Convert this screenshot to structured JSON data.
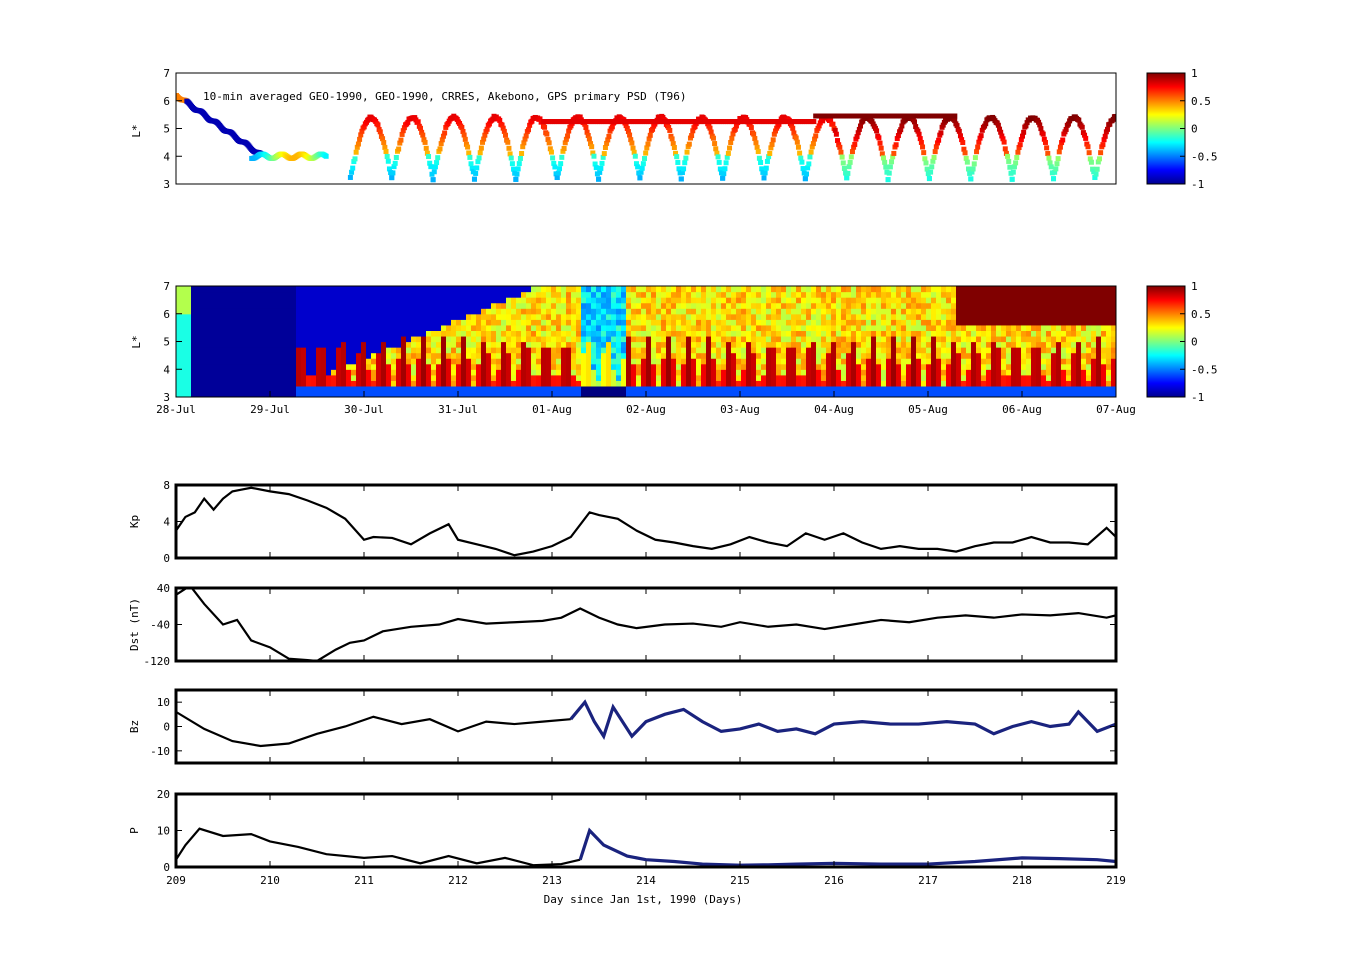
{
  "figure": {
    "xlabel": "Day since Jan 1st, 1990 (Days)"
  },
  "chart_data": [
    {
      "type": "scatter",
      "id": "lstar_obs",
      "annotation": "10-min averaged GEO-1990, GEO-1990, CRRES, Akebono, GPS  primary PSD (T96)",
      "ylabel": "L*",
      "ylim": [
        3,
        7
      ],
      "yticks": [
        3,
        4,
        5,
        6,
        7
      ],
      "xlim": [
        209,
        219
      ],
      "colorbar": {
        "range": [
          -1,
          1
        ],
        "ticks": [
          "1",
          "0.5",
          "0",
          "-0.5",
          "-1"
        ],
        "colormap": "jet"
      },
      "orbit_traces": {
        "start_day": 210.85,
        "period_days": 0.44,
        "trough_L": 3.2,
        "peak_L": 5.4
      }
    },
    {
      "type": "heatmap",
      "id": "lstar_model",
      "ylabel": "L*",
      "ylim": [
        3,
        7
      ],
      "yticks": [
        3,
        4,
        5,
        6,
        7
      ],
      "xticklabels": [
        "28-Jul",
        "29-Jul",
        "30-Jul",
        "31-Jul",
        "01-Aug",
        "02-Aug",
        "03-Aug",
        "04-Aug",
        "05-Aug",
        "06-Aug",
        "07-Aug"
      ],
      "colorbar": {
        "range": [
          -1,
          1
        ],
        "ticks": [
          "1",
          "0.5",
          "0",
          "-0.5",
          "-1"
        ],
        "colormap": "jet"
      }
    },
    {
      "type": "line",
      "id": "kp",
      "ylabel": "Kp",
      "ylim": [
        0,
        8
      ],
      "yticks": [
        "0",
        "4",
        "8"
      ],
      "x": [
        209.0,
        209.1,
        209.2,
        209.3,
        209.4,
        209.5,
        209.6,
        209.7,
        209.8,
        210.0,
        210.2,
        210.4,
        210.6,
        210.8,
        211.0,
        211.1,
        211.3,
        211.5,
        211.7,
        211.9,
        212.0,
        212.2,
        212.4,
        212.6,
        212.8,
        213.0,
        213.2,
        213.4,
        213.5,
        213.7,
        213.9,
        214.1,
        214.3,
        214.5,
        214.7,
        214.9,
        215.1,
        215.3,
        215.5,
        215.7,
        215.9,
        216.1,
        216.3,
        216.5,
        216.7,
        216.9,
        217.1,
        217.3,
        217.5,
        217.7,
        217.9,
        218.1,
        218.3,
        218.5,
        218.7,
        218.9,
        219.0
      ],
      "y": [
        3,
        4.5,
        5,
        6.5,
        5.3,
        6.5,
        7.3,
        7.5,
        7.7,
        7.3,
        7,
        6.3,
        5.5,
        4.3,
        2,
        2.3,
        2.2,
        1.5,
        2.7,
        3.7,
        2,
        1.5,
        1,
        0.3,
        0.7,
        1.3,
        2.3,
        5,
        4.7,
        4.3,
        3,
        2,
        1.7,
        1.3,
        1,
        1.5,
        2.3,
        1.7,
        1.3,
        2.7,
        2,
        2.7,
        1.7,
        1,
        1.3,
        1,
        1,
        0.7,
        1.3,
        1.7,
        1.7,
        2.3,
        1.7,
        1.7,
        1.5,
        3.3,
        2.3
      ],
      "color": "#000000"
    },
    {
      "type": "line",
      "id": "dst",
      "ylabel": "Dst (nT)",
      "ylim": [
        -120,
        40
      ],
      "yticks": [
        "-120",
        "-40",
        "40"
      ],
      "x": [
        209.0,
        209.15,
        209.3,
        209.5,
        209.65,
        209.8,
        210.0,
        210.2,
        210.4,
        210.5,
        210.7,
        210.85,
        211.0,
        211.2,
        211.5,
        211.8,
        212.0,
        212.3,
        212.6,
        212.9,
        213.1,
        213.3,
        213.5,
        213.7,
        213.9,
        214.2,
        214.5,
        214.8,
        215.0,
        215.3,
        215.6,
        215.9,
        216.2,
        216.5,
        216.8,
        217.1,
        217.4,
        217.7,
        218.0,
        218.3,
        218.6,
        218.9,
        219.0
      ],
      "y": [
        25,
        45,
        5,
        -40,
        -30,
        -75,
        -90,
        -115,
        -118,
        -120,
        -95,
        -80,
        -75,
        -55,
        -45,
        -40,
        -28,
        -38,
        -35,
        -32,
        -25,
        -5,
        -25,
        -40,
        -48,
        -40,
        -38,
        -45,
        -35,
        -45,
        -40,
        -50,
        -40,
        -30,
        -35,
        -25,
        -20,
        -25,
        -18,
        -20,
        -15,
        -25,
        -20
      ],
      "color": "#000000"
    },
    {
      "type": "line",
      "id": "bz",
      "ylabel": "Bz",
      "ylim": [
        -15,
        15
      ],
      "yticks": [
        "-10",
        "0",
        "10"
      ],
      "x": [
        209.0,
        209.3,
        209.6,
        209.9,
        210.2,
        210.5,
        210.8,
        211.1,
        211.4,
        211.7,
        212.0,
        212.3,
        212.6,
        212.9,
        213.2,
        213.35,
        213.45,
        213.55,
        213.65,
        213.85,
        214.0,
        214.2,
        214.4,
        214.6,
        214.8,
        215.0,
        215.2,
        215.4,
        215.6,
        215.8,
        216.0,
        216.3,
        216.6,
        216.9,
        217.2,
        217.5,
        217.7,
        217.9,
        218.1,
        218.3,
        218.5,
        218.6,
        218.8,
        219.0
      ],
      "y": [
        6,
        -1,
        -6,
        -8,
        -7,
        -3,
        0,
        4,
        1,
        3,
        -2,
        2,
        1,
        2,
        3,
        10,
        2,
        -4,
        8,
        -4,
        2,
        5,
        7,
        2,
        -2,
        -1,
        1,
        -2,
        -1,
        -3,
        1,
        2,
        1,
        1,
        2,
        1,
        -3,
        0,
        2,
        0,
        1,
        6,
        -2,
        1
      ],
      "colors": [
        "#000000",
        "#1a237e"
      ],
      "color_switch_day": 213.3
    },
    {
      "type": "line",
      "id": "pdyn",
      "ylabel": "P",
      "ylim": [
        0,
        20
      ],
      "yticks": [
        "0",
        "10",
        "20"
      ],
      "xticks": [
        "209",
        "210",
        "211",
        "212",
        "213",
        "214",
        "215",
        "216",
        "217",
        "218",
        "219"
      ],
      "x": [
        209.0,
        209.1,
        209.25,
        209.5,
        209.8,
        210.0,
        210.3,
        210.6,
        211.0,
        211.3,
        211.6,
        211.9,
        212.2,
        212.5,
        212.8,
        213.1,
        213.3,
        213.4,
        213.55,
        213.8,
        214.0,
        214.3,
        214.6,
        215.0,
        215.3,
        215.6,
        216.0,
        216.5,
        217.0,
        217.5,
        218.0,
        218.4,
        218.8,
        219.0
      ],
      "y": [
        2,
        6,
        10.5,
        8.5,
        9,
        7,
        5.5,
        3.5,
        2.5,
        3,
        1,
        3,
        1,
        2.5,
        0.5,
        0.8,
        2,
        10,
        6,
        3,
        2,
        1.5,
        0.8,
        0.5,
        0.6,
        0.8,
        1,
        0.8,
        0.8,
        1.5,
        2.5,
        2.3,
        2,
        1.5
      ],
      "colors": [
        "#000000",
        "#1a237e"
      ],
      "color_switch_day": 213.3
    }
  ]
}
